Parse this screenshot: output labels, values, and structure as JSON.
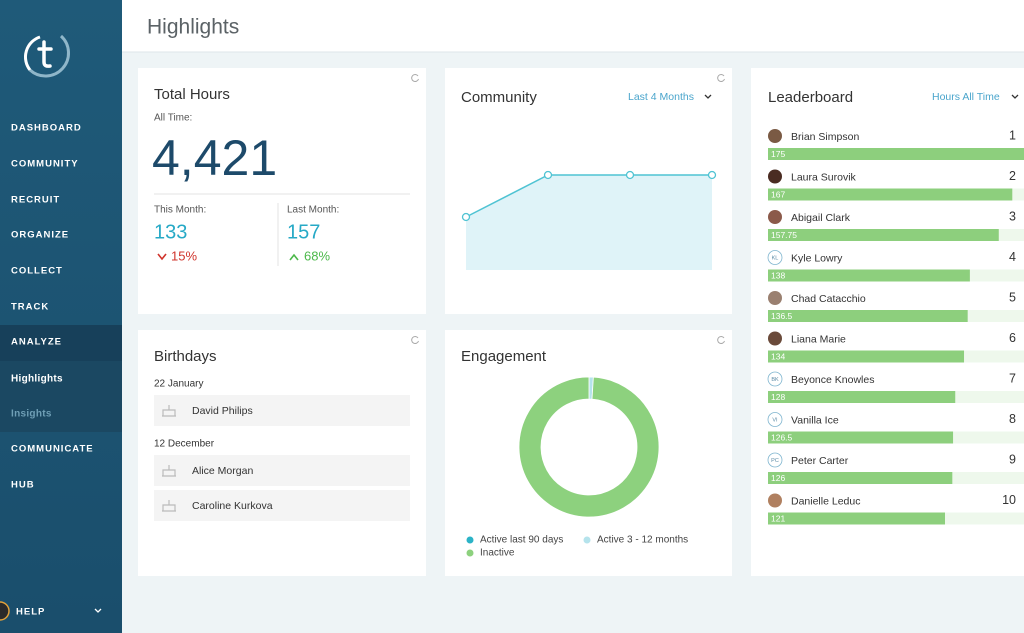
{
  "sidebar": {
    "nav": [
      "DASHBOARD",
      "COMMUNITY",
      "RECRUIT",
      "ORGANIZE",
      "COLLECT",
      "TRACK",
      "ANALYZE",
      "Highlights",
      "Insights",
      "COMMUNICATE",
      "HUB"
    ],
    "help": "HELP"
  },
  "header": {
    "title": "Highlights"
  },
  "total_hours": {
    "title": "Total Hours",
    "subtitle": "All Time:",
    "value": "4,421",
    "this_month_label": "This Month:",
    "this_month": 133,
    "this_month_change": "15%",
    "last_month_label": "Last Month:",
    "last_month": 157,
    "last_month_change": "68%"
  },
  "community": {
    "title": "Community",
    "filter": "Last 4 Months",
    "chart": {
      "type": "line",
      "values": [
        53,
        95,
        95,
        95
      ],
      "color": "#4fc3d3",
      "fill": "#dff3f8"
    }
  },
  "birthdays": {
    "title": "Birthdays",
    "groups": [
      {
        "date": "22 January",
        "people": [
          "David Philips"
        ]
      },
      {
        "date": "12 December",
        "people": [
          "Alice Morgan",
          "Caroline Kurkova"
        ]
      }
    ]
  },
  "engagement": {
    "title": "Engagement",
    "chart": {
      "type": "pie",
      "series": [
        {
          "name": "Active last 90 days",
          "color": "#2bb3c7",
          "value": 0
        },
        {
          "name": "Active 3 - 12 months",
          "color": "#b5e3ec",
          "value": 1
        },
        {
          "name": "Inactive",
          "color": "#8dd17e",
          "value": 99
        }
      ]
    }
  },
  "leaderboard": {
    "title": "Leaderboard",
    "filter": "Hours All Time",
    "bar_color": "#8dcf7d",
    "rows": [
      {
        "rank": 1,
        "name": "Brian Simpson",
        "hours": 175
      },
      {
        "rank": 2,
        "name": "Laura Surovik",
        "hours": 167
      },
      {
        "rank": 3,
        "name": "Abigail Clark",
        "hours": 157.75
      },
      {
        "rank": 4,
        "name": "Kyle Lowry",
        "hours": 138,
        "initials": "KL"
      },
      {
        "rank": 5,
        "name": "Chad Catacchio",
        "hours": 136.5
      },
      {
        "rank": 6,
        "name": "Liana Marie",
        "hours": 134
      },
      {
        "rank": 7,
        "name": "Beyonce Knowles",
        "hours": 128,
        "initials": "BK"
      },
      {
        "rank": 8,
        "name": "Vanilla Ice",
        "hours": 126.5,
        "initials": "VI"
      },
      {
        "rank": 9,
        "name": "Peter Carter",
        "hours": 126,
        "initials": "PC"
      },
      {
        "rank": 10,
        "name": "Danielle Leduc",
        "hours": 121
      }
    ]
  }
}
